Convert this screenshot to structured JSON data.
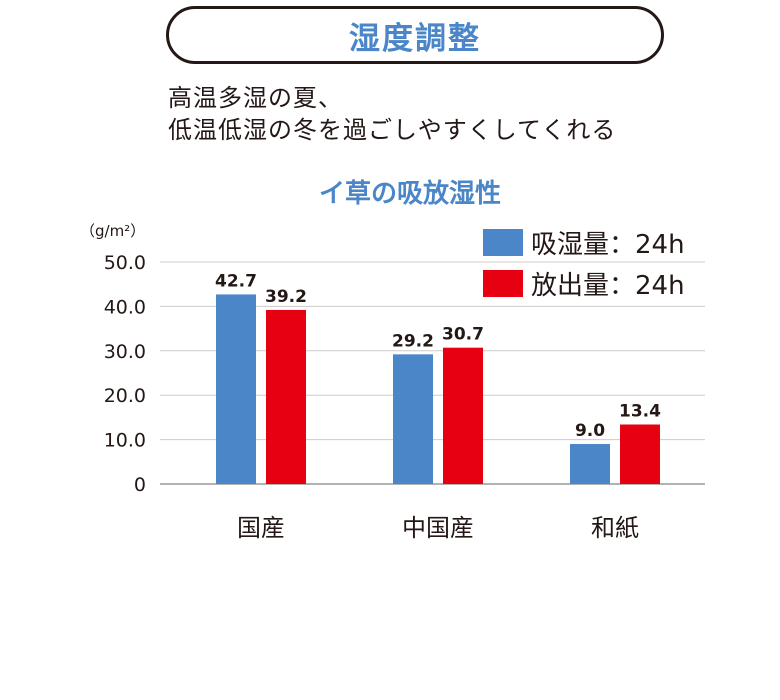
{
  "header": {
    "badge": "湿度調整"
  },
  "description": {
    "line1": "高温多湿の夏、",
    "line2": "低温低湿の冬を過ごしやすくしてくれる"
  },
  "colors": {
    "absorb": "#4a86c8",
    "release": "#e60012",
    "title": "#4a86c8",
    "grid": "#cccccc",
    "axis": "#999999"
  },
  "chart_data": {
    "type": "bar",
    "title": "イ草の吸放湿性",
    "unit": "（g/m²）",
    "categories": [
      "国産",
      "中国産",
      "和紙"
    ],
    "series": [
      {
        "name": "吸湿量：24h",
        "values": [
          42.7,
          29.2,
          9.0
        ],
        "labels": [
          "42.7",
          "29.2",
          "9.0"
        ]
      },
      {
        "name": "放出量：24h",
        "values": [
          39.2,
          30.7,
          13.4
        ],
        "labels": [
          "39.2",
          "30.7",
          "13.4"
        ]
      }
    ],
    "ylim": [
      0,
      50
    ],
    "yticks": [
      0,
      10,
      20,
      30,
      40,
      50
    ],
    "ytick_labels": [
      "0",
      "10.0",
      "20.0",
      "30.0",
      "40.0",
      "50.0"
    ],
    "grid": true,
    "legend": "top-right"
  }
}
